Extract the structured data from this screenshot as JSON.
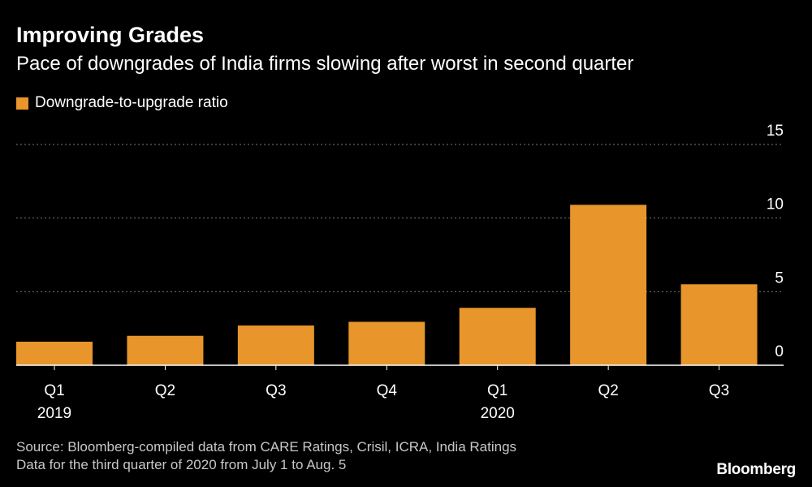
{
  "header": {
    "title": "Improving Grades",
    "subtitle": "Pace of downgrades of India firms slowing after worst in second quarter"
  },
  "legend": {
    "label": "Downgrade-to-upgrade ratio"
  },
  "colors": {
    "bar": "#e8952b",
    "grid": "#7a7a7a",
    "text": "#ffffff",
    "muted": "#c8c8c8"
  },
  "chart_data": {
    "type": "bar",
    "title": "Improving Grades",
    "subtitle": "Pace of downgrades of India firms slowing after worst in second quarter",
    "categories": [
      "Q1",
      "Q2",
      "Q3",
      "Q4",
      "Q1",
      "Q2",
      "Q3"
    ],
    "category_groups": [
      "2019",
      "",
      "",
      "",
      "2020",
      "",
      ""
    ],
    "series": [
      {
        "name": "Downgrade-to-upgrade ratio",
        "values": [
          1.6,
          2.0,
          2.7,
          2.95,
          3.9,
          10.9,
          5.5
        ]
      }
    ],
    "ylim": [
      0,
      15
    ],
    "yticks": [
      0,
      5,
      10,
      15
    ],
    "xlabel": "",
    "ylabel": "",
    "grid": true,
    "y_axis_side": "right",
    "legend_position": "top-left"
  },
  "footer": {
    "source": "Source: Bloomberg-compiled data from CARE Ratings, Crisil, ICRA, India Ratings",
    "note": "Data for the third quarter of 2020 from July 1 to Aug. 5"
  },
  "brand": "Bloomberg"
}
